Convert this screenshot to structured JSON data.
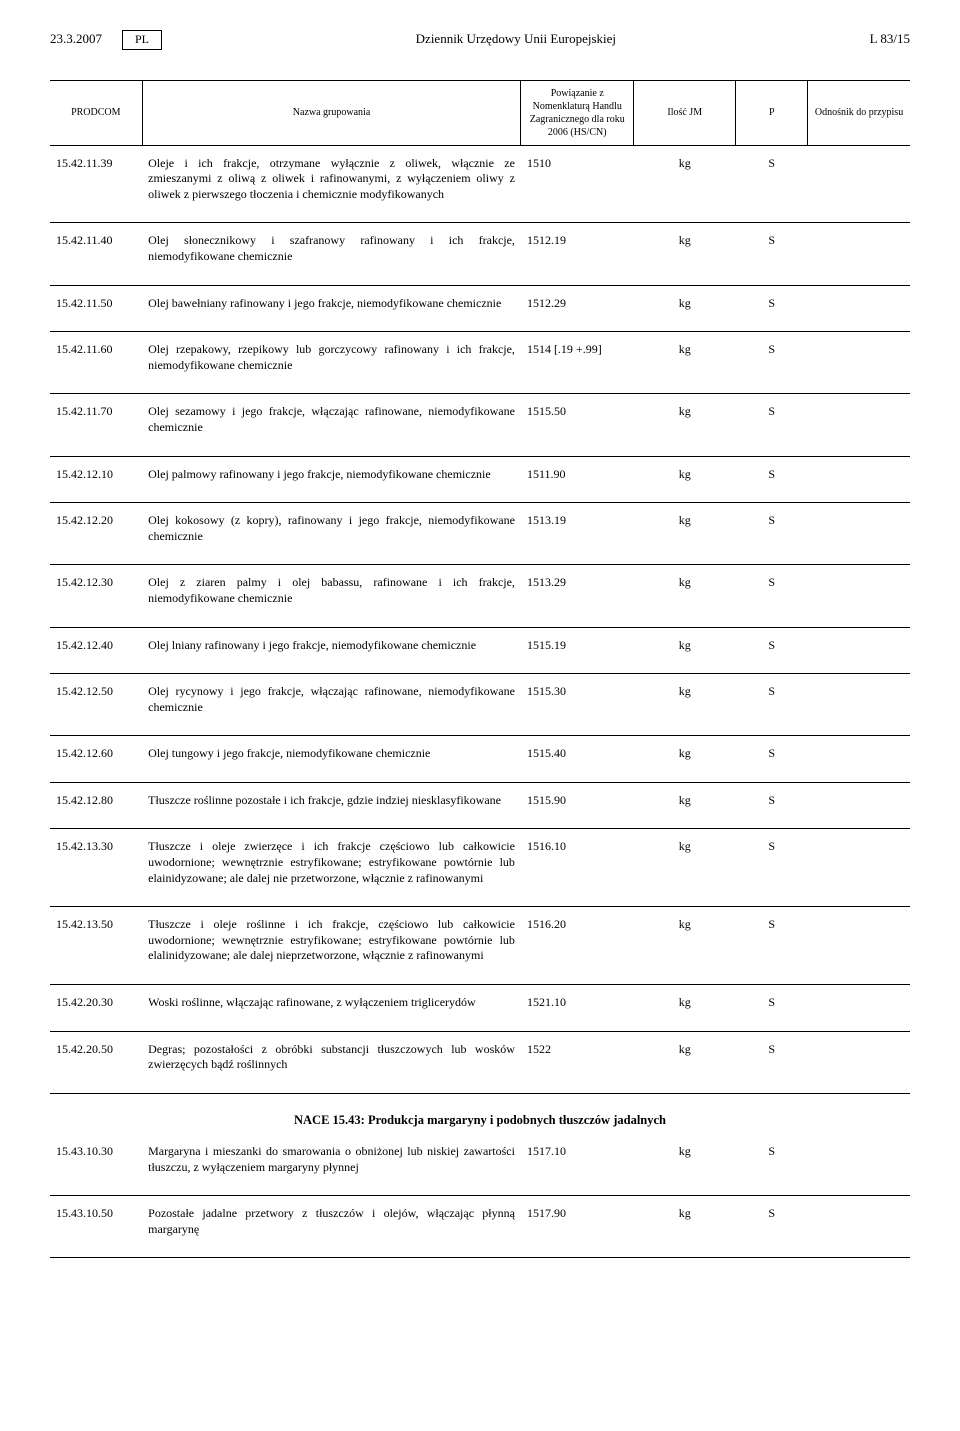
{
  "header": {
    "date": "23.3.2007",
    "lang": "PL",
    "journal": "Dziennik Urzędowy Unii Europejskiej",
    "pageref": "L 83/15"
  },
  "columns": {
    "prodcom": "PRODCOM",
    "name": "Nazwa grupowania",
    "hs": "Powiązanie z Nomenklaturą Handlu Zagranicznego dla roku 2006 (HS/CN)",
    "jm": "Ilość JM",
    "p": "P",
    "ref": "Odnośnik do przypisu"
  },
  "rows": [
    {
      "code": "15.42.11.39",
      "desc": "Oleje i ich frakcje, otrzymane wyłącznie z oliwek, włącznie ze zmieszanymi z oliwą z oliwek i rafinowanymi, z wyłączeniem oliwy z oliwek z pierwszego tłoczenia i chemicznie modyfikowanych",
      "hs": "1510",
      "jm": "kg",
      "p": "S",
      "ref": ""
    },
    {
      "code": "15.42.11.40",
      "desc": "Olej słonecznikowy i szafranowy rafinowany i ich frakcje, niemodyfikowane chemicznie",
      "hs": "1512.19",
      "jm": "kg",
      "p": "S",
      "ref": ""
    },
    {
      "code": "15.42.11.50",
      "desc": "Olej bawełniany rafinowany i jego frakcje, niemodyfikowane chemicznie",
      "hs": "1512.29",
      "jm": "kg",
      "p": "S",
      "ref": ""
    },
    {
      "code": "15.42.11.60",
      "desc": "Olej rzepakowy, rzepikowy lub gorczycowy rafinowany i ich frakcje, niemodyfikowane chemicznie",
      "hs": "1514 [.19 +.99]",
      "jm": "kg",
      "p": "S",
      "ref": ""
    },
    {
      "code": "15.42.11.70",
      "desc": "Olej sezamowy i jego frakcje, włączając rafinowane, niemodyfikowane chemicznie",
      "hs": "1515.50",
      "jm": "kg",
      "p": "S",
      "ref": ""
    },
    {
      "code": "15.42.12.10",
      "desc": "Olej palmowy rafinowany i jego frakcje, niemodyfikowane chemicznie",
      "hs": "1511.90",
      "jm": "kg",
      "p": "S",
      "ref": ""
    },
    {
      "code": "15.42.12.20",
      "desc": "Olej kokosowy (z kopry), rafinowany i jego frakcje, niemodyfikowane chemicznie",
      "hs": "1513.19",
      "jm": "kg",
      "p": "S",
      "ref": ""
    },
    {
      "code": "15.42.12.30",
      "desc": "Olej z ziaren palmy i olej babassu, rafinowane i ich frakcje, niemodyfikowane chemicznie",
      "hs": "1513.29",
      "jm": "kg",
      "p": "S",
      "ref": ""
    },
    {
      "code": "15.42.12.40",
      "desc": "Olej lniany rafinowany i jego frakcje, niemodyfikowane chemicznie",
      "hs": "1515.19",
      "jm": "kg",
      "p": "S",
      "ref": ""
    },
    {
      "code": "15.42.12.50",
      "desc": "Olej rycynowy i jego frakcje, włączając rafinowane, niemodyfikowane chemicznie",
      "hs": "1515.30",
      "jm": "kg",
      "p": "S",
      "ref": ""
    },
    {
      "code": "15.42.12.60",
      "desc": "Olej tungowy i jego frakcje, niemodyfikowane chemicznie",
      "hs": "1515.40",
      "jm": "kg",
      "p": "S",
      "ref": ""
    },
    {
      "code": "15.42.12.80",
      "desc": "Tłuszcze roślinne pozostałe i ich frakcje, gdzie indziej niesklasyfikowane",
      "hs": "1515.90",
      "jm": "kg",
      "p": "S",
      "ref": ""
    },
    {
      "code": "15.42.13.30",
      "desc": "Tłuszcze i oleje zwierzęce i ich frakcje częściowo lub całkowicie uwodornione; wewnętrznie estryfikowane; estryfikowane powtórnie lub elainidyzowane; ale dalej nie przetworzone, włącznie z rafinowanymi",
      "hs": "1516.10",
      "jm": "kg",
      "p": "S",
      "ref": ""
    },
    {
      "code": "15.42.13.50",
      "desc": "Tłuszcze i oleje roślinne i ich frakcje, częściowo lub całkowicie uwodornione; wewnętrznie estryfikowane; estryfikowane powtórnie lub elalinidyzowane; ale dalej nieprzetworzone, włącznie z rafinowanymi",
      "hs": "1516.20",
      "jm": "kg",
      "p": "S",
      "ref": ""
    },
    {
      "code": "15.42.20.30",
      "desc": "Woski roślinne, włączając rafinowane, z wyłączeniem triglicerydów",
      "hs": "1521.10",
      "jm": "kg",
      "p": "S",
      "ref": ""
    },
    {
      "code": "15.42.20.50",
      "desc": "Degras; pozostałości z obróbki substancji tłuszczowych lub wosków zwierzęcych bądź roślinnych",
      "hs": "1522",
      "jm": "kg",
      "p": "S",
      "ref": ""
    }
  ],
  "section": "NACE 15.43: Produkcja margaryny i podobnych tłuszczów jadalnych",
  "rows2": [
    {
      "code": "15.43.10.30",
      "desc": "Margaryna i mieszanki do smarowania o obniżonej lub niskiej zawartości tłuszczu, z wyłączeniem margaryny płynnej",
      "hs": "1517.10",
      "jm": "kg",
      "p": "S",
      "ref": ""
    },
    {
      "code": "15.43.10.50",
      "desc": "Pozostałe jadalne przetwory z tłuszczów i olejów, włączając płynną margarynę",
      "hs": "1517.90",
      "jm": "kg",
      "p": "S",
      "ref": ""
    }
  ]
}
